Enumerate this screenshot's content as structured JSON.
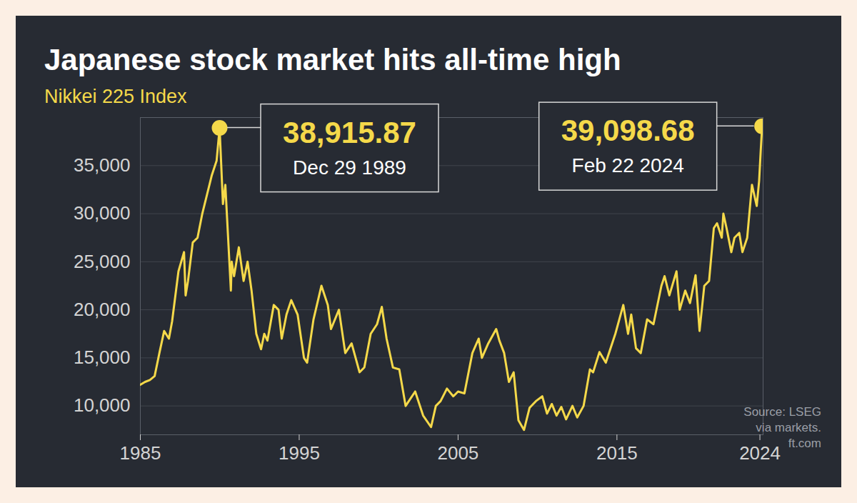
{
  "chart_data": {
    "type": "line",
    "title": "Japanese stock market hits all-time high",
    "subtitle": "Nikkei 225 Index",
    "source": [
      "Source: LSEG",
      "via markets.",
      "ft.com"
    ],
    "color": "#f5d94a",
    "grid": true,
    "xlim": [
      1985,
      2024.2
    ],
    "xticks": [
      1985,
      1995,
      2005,
      2015,
      2024
    ],
    "ylim": [
      7000,
      40000
    ],
    "yticks": [
      {
        "value": 10000,
        "label": "10,000"
      },
      {
        "value": 15000,
        "label": "15,000"
      },
      {
        "value": 20000,
        "label": "20,000"
      },
      {
        "value": 25000,
        "label": "25,000"
      },
      {
        "value": 30000,
        "label": "30,000"
      },
      {
        "value": 35000,
        "label": "35,000"
      }
    ],
    "x": [
      1985.0,
      1985.3,
      1985.6,
      1985.9,
      1986.2,
      1986.5,
      1986.8,
      1987.0,
      1987.4,
      1987.75,
      1987.85,
      1988.0,
      1988.3,
      1988.6,
      1988.9,
      1989.2,
      1989.5,
      1989.8,
      1989.99,
      1990.2,
      1990.35,
      1990.7,
      1990.75,
      1990.9,
      1991.2,
      1991.5,
      1991.75,
      1992.0,
      1992.3,
      1992.6,
      1992.8,
      1993.0,
      1993.4,
      1993.7,
      1993.9,
      1994.2,
      1994.5,
      1994.9,
      1995.3,
      1995.5,
      1995.9,
      1996.4,
      1996.8,
      1997.0,
      1997.5,
      1997.9,
      1998.3,
      1998.8,
      1999.1,
      1999.5,
      1999.9,
      2000.2,
      2000.5,
      2000.9,
      2001.3,
      2001.7,
      2001.9,
      2002.3,
      2002.8,
      2003.3,
      2003.6,
      2003.9,
      2004.3,
      2004.7,
      2005.0,
      2005.4,
      2005.9,
      2006.3,
      2006.5,
      2006.9,
      2007.4,
      2007.6,
      2007.9,
      2008.2,
      2008.5,
      2008.8,
      2009.15,
      2009.5,
      2009.9,
      2010.3,
      2010.6,
      2010.9,
      2011.2,
      2011.5,
      2011.8,
      2012.2,
      2012.5,
      2012.9,
      2013.3,
      2013.5,
      2013.9,
      2014.3,
      2014.9,
      2015.4,
      2015.7,
      2015.9,
      2016.2,
      2016.5,
      2016.9,
      2017.3,
      2017.8,
      2018.0,
      2018.3,
      2018.75,
      2018.95,
      2019.3,
      2019.6,
      2019.95,
      2020.2,
      2020.5,
      2020.8,
      2021.1,
      2021.3,
      2021.6,
      2021.7,
      2021.9,
      2022.2,
      2022.4,
      2022.7,
      2022.9,
      2023.2,
      2023.5,
      2023.8,
      2023.95,
      2024.05,
      2024.14
    ],
    "values": [
      12200,
      12500,
      12700,
      13100,
      15500,
      17800,
      17000,
      18800,
      24000,
      26000,
      21500,
      23000,
      27000,
      27500,
      30000,
      32000,
      34000,
      35500,
      38915.87,
      31000,
      33000,
      22000,
      25000,
      23500,
      26500,
      23000,
      25000,
      22000,
      17500,
      15900,
      17500,
      16800,
      20500,
      20000,
      17000,
      19500,
      21000,
      19500,
      15000,
      14500,
      19000,
      22500,
      20500,
      18000,
      20000,
      15500,
      16500,
      13500,
      14000,
      17500,
      18500,
      20300,
      17000,
      14000,
      13800,
      10000,
      10500,
      11500,
      9000,
      7800,
      10000,
      10500,
      11800,
      11000,
      11500,
      11300,
      15500,
      17000,
      15000,
      16500,
      18000,
      16800,
      15500,
      12500,
      13500,
      8500,
      7500,
      9800,
      10500,
      11000,
      9200,
      10200,
      9000,
      9900,
      8600,
      10000,
      8800,
      10000,
      13800,
      13500,
      15600,
      14500,
      17500,
      20500,
      17500,
      19500,
      16000,
      15500,
      19000,
      18500,
      22500,
      23500,
      21500,
      24000,
      20000,
      22000,
      20700,
      23600,
      17800,
      22500,
      23000,
      28500,
      29000,
      27500,
      30000,
      28500,
      26000,
      27500,
      28000,
      26000,
      27500,
      33000,
      30800,
      33400,
      36500,
      39098.68
    ],
    "annotations": [
      {
        "x": 1989.99,
        "value": 38915.87,
        "label": "38,915.87",
        "text": "Dec 29 1989",
        "marker": "circle"
      },
      {
        "x": 2024.14,
        "value": 39098.68,
        "label": "39,098.68",
        "text": "Feb 22 2024",
        "marker": "circle"
      }
    ]
  }
}
